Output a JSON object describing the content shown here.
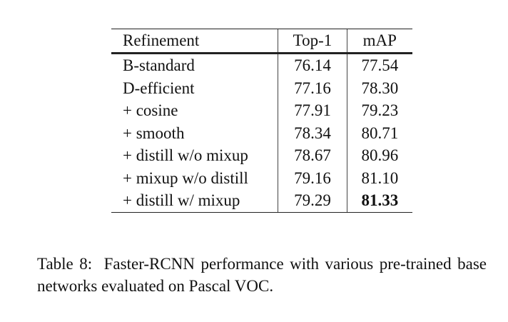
{
  "table": {
    "headers": [
      "Refinement",
      "Top-1",
      "mAP"
    ],
    "rows": [
      {
        "name": "B-standard",
        "top1": "76.14",
        "map": "77.54"
      },
      {
        "name": "D-efficient",
        "top1": "77.16",
        "map": "78.30"
      },
      {
        "name": "+ cosine",
        "top1": "77.91",
        "map": "79.23"
      },
      {
        "name": "+ smooth",
        "top1": "78.34",
        "map": "80.71"
      },
      {
        "name": "+ distill w/o mixup",
        "top1": "78.67",
        "map": "80.96"
      },
      {
        "name": "+ mixup w/o distill",
        "top1": "79.16",
        "map": "81.10"
      },
      {
        "name": "+ distill w/ mixup",
        "top1": "79.29",
        "map": "81.33"
      }
    ],
    "bold_cell": {
      "row": 6,
      "column": "map"
    }
  },
  "caption": {
    "label": "Table 8:",
    "text": "Faster-RCNN performance with various pre-trained base networks evaluated on Pascal VOC."
  }
}
